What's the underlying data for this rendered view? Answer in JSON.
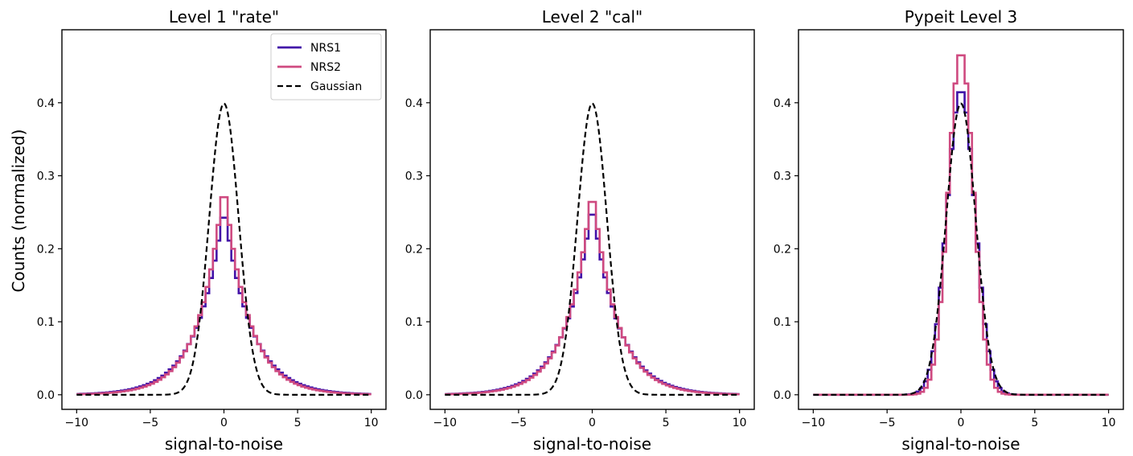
{
  "figure": {
    "shared_ylabel": "Counts (normalized)"
  },
  "legend": {
    "items": [
      {
        "label": "NRS1",
        "color": "#4212A8",
        "style": "solid"
      },
      {
        "label": "NRS2",
        "color": "#CF4A80",
        "style": "solid"
      },
      {
        "label": "Gaussian",
        "color": "#000000",
        "style": "dashed"
      }
    ]
  },
  "chart_data": [
    {
      "type": "line",
      "title": "Level 1 \"rate\"",
      "xlabel": "signal-to-noise",
      "ylabel": "Counts (normalized)",
      "xlim": [
        -11,
        11
      ],
      "ylim": [
        -0.02,
        0.5
      ],
      "xticks": [
        -10,
        -5,
        0,
        5,
        10
      ],
      "xtick_labels": [
        "−10",
        "−5",
        "0",
        "5",
        "10"
      ],
      "yticks": [
        0.0,
        0.1,
        0.2,
        0.3,
        0.4
      ],
      "ytick_labels": [
        "0.0",
        "0.1",
        "0.2",
        "0.3",
        "0.4"
      ],
      "grid": false,
      "legend_position": "upper right",
      "series": [
        {
          "name": "NRS1",
          "color": "#4212A8",
          "kind": "step",
          "profile": "laplace",
          "peak": 0.26,
          "scale": 1.8
        },
        {
          "name": "NRS2",
          "color": "#CF4A80",
          "kind": "step",
          "profile": "laplace",
          "peak": 0.292,
          "scale": 1.65
        },
        {
          "name": "Gaussian",
          "color": "#000000",
          "kind": "dashed",
          "profile": "gaussian",
          "peak": 0.399,
          "sigma": 1.0
        }
      ]
    },
    {
      "type": "line",
      "title": "Level 2 \"cal\"",
      "xlabel": "signal-to-noise",
      "xlim": [
        -11,
        11
      ],
      "ylim": [
        -0.02,
        0.5
      ],
      "xticks": [
        -10,
        -5,
        0,
        5,
        10
      ],
      "xtick_labels": [
        "−10",
        "−5",
        "0",
        "5",
        "10"
      ],
      "yticks": [
        0.0,
        0.1,
        0.2,
        0.3,
        0.4
      ],
      "ytick_labels": [
        "0.0",
        "0.1",
        "0.2",
        "0.3",
        "0.4"
      ],
      "grid": false,
      "series": [
        {
          "name": "NRS1",
          "color": "#4212A8",
          "kind": "step",
          "profile": "laplace",
          "peak": 0.265,
          "scale": 1.75
        },
        {
          "name": "NRS2",
          "color": "#CF4A80",
          "kind": "step",
          "profile": "laplace",
          "peak": 0.285,
          "scale": 1.65
        },
        {
          "name": "Gaussian",
          "color": "#000000",
          "kind": "dashed",
          "profile": "gaussian",
          "peak": 0.399,
          "sigma": 1.0
        }
      ]
    },
    {
      "type": "line",
      "title": "Pypeit Level 3",
      "xlabel": "signal-to-noise",
      "xlim": [
        -11,
        11
      ],
      "ylim": [
        -0.02,
        0.5
      ],
      "xticks": [
        -10,
        -5,
        0,
        5,
        10
      ],
      "xtick_labels": [
        "−10",
        "−5",
        "0",
        "5",
        "10"
      ],
      "yticks": [
        0.0,
        0.1,
        0.2,
        0.3,
        0.4
      ],
      "ytick_labels": [
        "0.0",
        "0.1",
        "0.2",
        "0.3",
        "0.4"
      ],
      "grid": false,
      "series": [
        {
          "name": "NRS1",
          "color": "#4212A8",
          "kind": "step",
          "profile": "gaussian",
          "peak": 0.418,
          "sigma": 0.95
        },
        {
          "name": "NRS2",
          "color": "#CF4A80",
          "kind": "step",
          "profile": "gaussian",
          "peak": 0.47,
          "sigma": 0.85
        },
        {
          "name": "Gaussian",
          "color": "#000000",
          "kind": "dashed",
          "profile": "gaussian",
          "peak": 0.399,
          "sigma": 1.0
        }
      ]
    }
  ]
}
